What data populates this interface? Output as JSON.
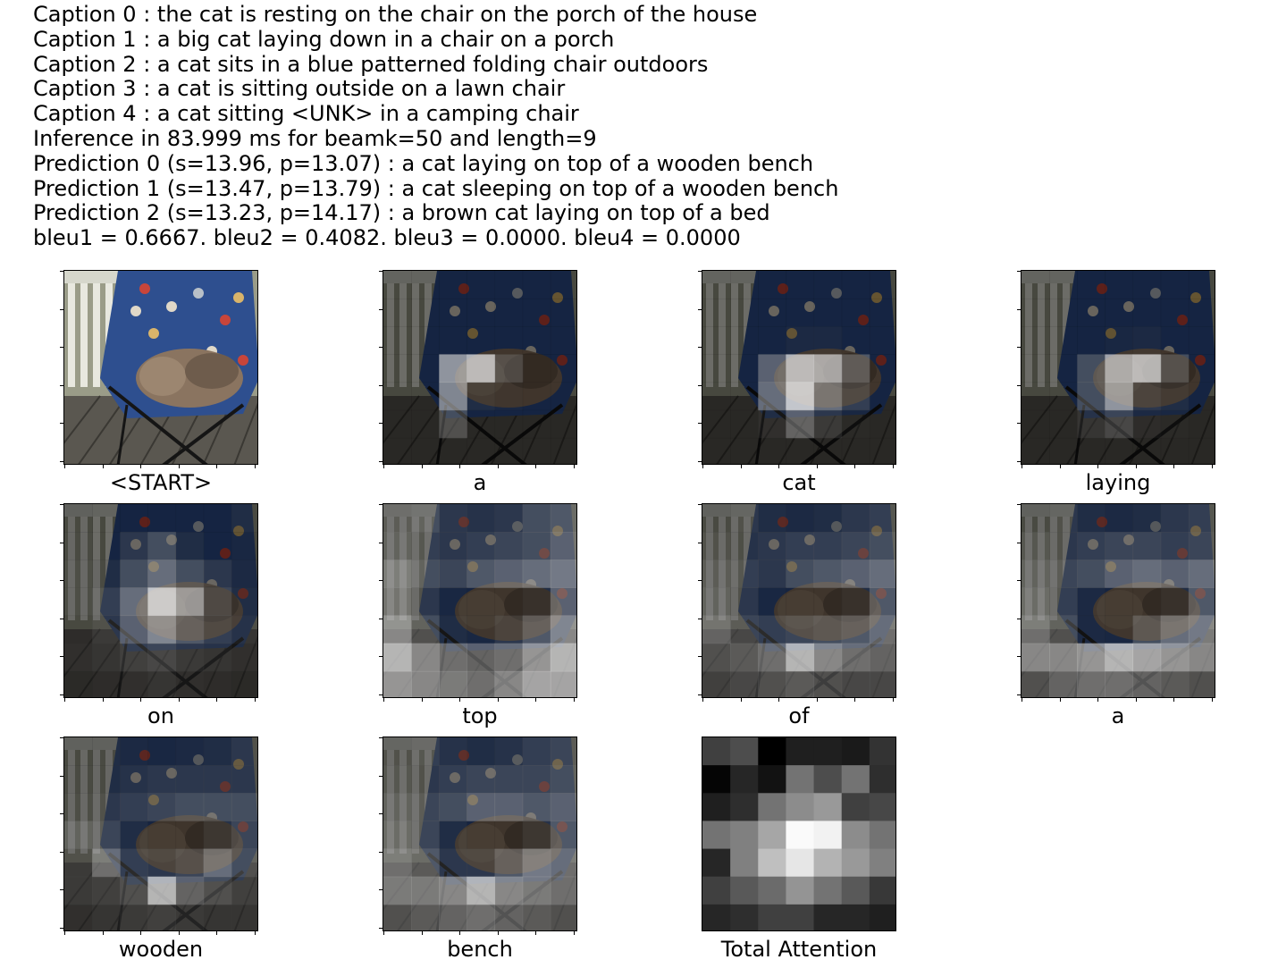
{
  "header_lines": [
    "Caption 0 : the cat is resting on the chair on the porch of the house",
    "Caption 1 : a big cat laying down in a chair on a porch",
    "Caption 2 : a cat sits in a blue patterned folding chair outdoors",
    "Caption 3 : a cat is sitting outside on a lawn chair",
    "Caption 4 : a cat sitting <UNK> in a camping chair",
    "Inference in 83.999 ms for beamk=50 and length=9",
    "Prediction 0 (s=13.96, p=13.07) : a cat laying on top of a wooden bench",
    "Prediction 1 (s=13.47, p=13.79) : a cat sleeping on top of a wooden bench",
    "Prediction 2 (s=13.23, p=14.17) : a brown cat laying on top of a bed",
    "bleu1 = 0.6667. bleu2 = 0.4082. bleu3 = 0.0000. bleu4 = 0.0000"
  ],
  "panels": [
    {
      "label": "<START>",
      "kind": "original"
    },
    {
      "label": "a",
      "kind": "attention",
      "attention": [
        [
          0,
          0,
          0,
          0,
          0,
          0,
          0
        ],
        [
          0,
          0,
          0,
          0,
          0,
          0,
          0
        ],
        [
          0,
          0,
          0,
          0,
          0,
          0,
          0
        ],
        [
          0,
          0,
          0.75,
          0.85,
          0.4,
          0,
          0
        ],
        [
          0,
          0,
          0.7,
          0.2,
          0.1,
          0,
          0
        ],
        [
          0,
          0,
          0.45,
          0,
          0,
          0,
          0
        ],
        [
          0,
          0,
          0,
          0,
          0,
          0,
          0
        ]
      ]
    },
    {
      "label": "cat",
      "kind": "attention",
      "attention": [
        [
          0,
          0,
          0,
          0,
          0,
          0,
          0
        ],
        [
          0,
          0,
          0,
          0,
          0,
          0,
          0
        ],
        [
          0,
          0,
          0,
          0.15,
          0.15,
          0,
          0
        ],
        [
          0,
          0,
          0.55,
          0.85,
          0.8,
          0.5,
          0
        ],
        [
          0,
          0,
          0.6,
          0.9,
          0.6,
          0.35,
          0
        ],
        [
          0,
          0,
          0.2,
          0.55,
          0.3,
          0.1,
          0
        ],
        [
          0,
          0,
          0,
          0,
          0,
          0,
          0
        ]
      ]
    },
    {
      "label": "laying",
      "kind": "attention",
      "attention": [
        [
          0,
          0,
          0,
          0,
          0,
          0,
          0
        ],
        [
          0,
          0,
          0,
          0,
          0,
          0,
          0
        ],
        [
          0,
          0,
          0,
          0.1,
          0.15,
          0,
          0
        ],
        [
          0,
          0,
          0.45,
          0.8,
          0.85,
          0.45,
          0
        ],
        [
          0,
          0,
          0.45,
          0.75,
          0.3,
          0.2,
          0
        ],
        [
          0,
          0,
          0.25,
          0.4,
          0.15,
          0.1,
          0
        ],
        [
          0,
          0,
          0,
          0,
          0,
          0,
          0
        ]
      ]
    },
    {
      "label": "on",
      "kind": "attention",
      "attention": [
        [
          0.15,
          0,
          0,
          0,
          0,
          0,
          0.2
        ],
        [
          0.2,
          0,
          0.3,
          0.45,
          0.2,
          0,
          0.1
        ],
        [
          0.25,
          0.2,
          0.45,
          0.6,
          0.45,
          0.3,
          0.15
        ],
        [
          0.25,
          0.35,
          0.6,
          0.9,
          0.75,
          0.4,
          0.2
        ],
        [
          0.15,
          0.3,
          0.55,
          0.7,
          0.5,
          0.35,
          0.25
        ],
        [
          0.2,
          0.25,
          0.35,
          0.4,
          0.3,
          0.25,
          0.2
        ],
        [
          0.1,
          0.15,
          0.2,
          0.25,
          0.2,
          0.15,
          0.1
        ]
      ]
    },
    {
      "label": "top",
      "kind": "attention",
      "attention": [
        [
          0.4,
          0.45,
          0.3,
          0.25,
          0.3,
          0.45,
          0.5
        ],
        [
          0.45,
          0.35,
          0.3,
          0.35,
          0.4,
          0.45,
          0.55
        ],
        [
          0.6,
          0.45,
          0.4,
          0.5,
          0.55,
          0.6,
          0.65
        ],
        [
          0.55,
          0.3,
          0.1,
          0.05,
          0.05,
          0.2,
          0.55
        ],
        [
          0.7,
          0.45,
          0.2,
          0.1,
          0.3,
          0.5,
          0.7
        ],
        [
          0.85,
          0.7,
          0.6,
          0.55,
          0.6,
          0.75,
          0.85
        ],
        [
          0.75,
          0.7,
          0.65,
          0.6,
          0.7,
          0.8,
          0.8
        ]
      ]
    },
    {
      "label": "of",
      "kind": "attention",
      "attention": [
        [
          0.2,
          0.3,
          0.2,
          0.15,
          0.2,
          0.3,
          0.35
        ],
        [
          0.3,
          0.25,
          0.3,
          0.35,
          0.35,
          0.4,
          0.45
        ],
        [
          0.4,
          0.35,
          0.3,
          0.45,
          0.5,
          0.55,
          0.6
        ],
        [
          0.45,
          0.3,
          0.1,
          0.05,
          0.05,
          0.2,
          0.5
        ],
        [
          0.55,
          0.4,
          0.35,
          0.4,
          0.45,
          0.5,
          0.6
        ],
        [
          0.45,
          0.5,
          0.6,
          0.85,
          0.7,
          0.6,
          0.55
        ],
        [
          0.35,
          0.4,
          0.45,
          0.5,
          0.45,
          0.4,
          0.4
        ]
      ]
    },
    {
      "label": "a",
      "kind": "attention",
      "attention": [
        [
          0.2,
          0.3,
          0.2,
          0.15,
          0.2,
          0.3,
          0.35
        ],
        [
          0.35,
          0.3,
          0.35,
          0.4,
          0.4,
          0.35,
          0.4
        ],
        [
          0.45,
          0.4,
          0.45,
          0.55,
          0.6,
          0.55,
          0.6
        ],
        [
          0.5,
          0.35,
          0.15,
          0.05,
          0.05,
          0.2,
          0.5
        ],
        [
          0.6,
          0.45,
          0.15,
          0.1,
          0.45,
          0.6,
          0.65
        ],
        [
          0.7,
          0.7,
          0.75,
          0.85,
          0.8,
          0.75,
          0.7
        ],
        [
          0.45,
          0.55,
          0.6,
          0.6,
          0.55,
          0.5,
          0.45
        ]
      ]
    },
    {
      "label": "wooden",
      "kind": "attention",
      "attention": [
        [
          0.15,
          0.2,
          0.15,
          0.1,
          0.15,
          0.2,
          0.3
        ],
        [
          0.2,
          0.2,
          0.25,
          0.3,
          0.3,
          0.3,
          0.3
        ],
        [
          0.25,
          0.3,
          0.35,
          0.4,
          0.45,
          0.45,
          0.45
        ],
        [
          0.45,
          0.4,
          0.2,
          0.05,
          0.05,
          0.25,
          0.4
        ],
        [
          0.3,
          0.6,
          0.35,
          0.3,
          0.4,
          0.6,
          0.45
        ],
        [
          0.3,
          0.35,
          0.45,
          0.85,
          0.55,
          0.45,
          0.35
        ],
        [
          0.2,
          0.25,
          0.3,
          0.35,
          0.3,
          0.25,
          0.25
        ]
      ]
    },
    {
      "label": "bench",
      "kind": "attention",
      "attention": [
        [
          0.3,
          0.35,
          0.25,
          0.2,
          0.25,
          0.35,
          0.4
        ],
        [
          0.35,
          0.3,
          0.35,
          0.4,
          0.4,
          0.4,
          0.45
        ],
        [
          0.45,
          0.4,
          0.45,
          0.55,
          0.55,
          0.5,
          0.55
        ],
        [
          0.5,
          0.4,
          0.2,
          0.05,
          0.05,
          0.25,
          0.5
        ],
        [
          0.6,
          0.5,
          0.3,
          0.3,
          0.5,
          0.65,
          0.6
        ],
        [
          0.65,
          0.65,
          0.7,
          0.85,
          0.7,
          0.65,
          0.6
        ],
        [
          0.45,
          0.5,
          0.55,
          0.6,
          0.55,
          0.5,
          0.45
        ]
      ]
    },
    {
      "label": "Total Attention",
      "kind": "total",
      "attention": [
        [
          0.25,
          0.3,
          0.0,
          0.12,
          0.12,
          0.1,
          0.2
        ],
        [
          0.02,
          0.15,
          0.07,
          0.45,
          0.3,
          0.45,
          0.18
        ],
        [
          0.12,
          0.18,
          0.45,
          0.55,
          0.6,
          0.25,
          0.28
        ],
        [
          0.45,
          0.5,
          0.65,
          0.98,
          0.95,
          0.55,
          0.45
        ],
        [
          0.15,
          0.5,
          0.75,
          0.9,
          0.7,
          0.6,
          0.5
        ],
        [
          0.25,
          0.35,
          0.42,
          0.58,
          0.45,
          0.35,
          0.22
        ],
        [
          0.15,
          0.18,
          0.25,
          0.25,
          0.15,
          0.15,
          0.12
        ]
      ]
    }
  ]
}
